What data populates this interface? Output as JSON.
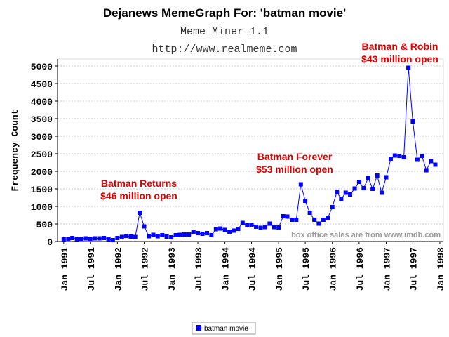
{
  "chart_data": {
    "type": "line",
    "title": "Dejanews MemeGraph For: 'batman movie'",
    "subtitle": "Meme Miner 1.1",
    "url": "http://www.realmeme.com",
    "y_label": "Frequency Count",
    "note": "box office sales are from www.imdb.com",
    "annotations": [
      {
        "lines": [
          "Batman Returns",
          "$46 million open"
        ]
      },
      {
        "lines": [
          "Batman Forever",
          "$53 million open"
        ]
      },
      {
        "lines": [
          "Batman & Robin",
          "$43 million open"
        ]
      }
    ],
    "x": [
      "1991-01",
      "1991-02",
      "1991-03",
      "1991-04",
      "1991-05",
      "1991-06",
      "1991-07",
      "1991-08",
      "1991-09",
      "1991-10",
      "1991-11",
      "1991-12",
      "1992-01",
      "1992-02",
      "1992-03",
      "1992-04",
      "1992-05",
      "1992-06",
      "1992-07",
      "1992-08",
      "1992-09",
      "1992-10",
      "1992-11",
      "1992-12",
      "1993-01",
      "1993-02",
      "1993-03",
      "1993-04",
      "1993-05",
      "1993-06",
      "1993-07",
      "1993-08",
      "1993-09",
      "1993-10",
      "1993-11",
      "1993-12",
      "1994-01",
      "1994-02",
      "1994-03",
      "1994-04",
      "1994-05",
      "1994-06",
      "1994-07",
      "1994-08",
      "1994-09",
      "1994-10",
      "1994-11",
      "1994-12",
      "1995-01",
      "1995-02",
      "1995-03",
      "1995-04",
      "1995-05",
      "1995-06",
      "1995-07",
      "1995-08",
      "1995-09",
      "1995-10",
      "1995-11",
      "1995-12",
      "1996-01",
      "1996-02",
      "1996-03",
      "1996-04",
      "1996-05",
      "1996-06",
      "1996-07",
      "1996-08",
      "1996-09",
      "1996-10",
      "1996-11",
      "1996-12",
      "1997-01",
      "1997-02",
      "1997-03",
      "1997-04",
      "1997-05",
      "1997-06",
      "1997-07",
      "1997-08",
      "1997-09",
      "1997-10",
      "1997-11",
      "1997-12"
    ],
    "series": [
      {
        "name": "batman movie",
        "color": "#0000ff",
        "values": [
          60,
          80,
          100,
          70,
          80,
          90,
          80,
          90,
          90,
          100,
          60,
          40,
          100,
          130,
          160,
          140,
          130,
          820,
          430,
          150,
          190,
          150,
          180,
          140,
          120,
          180,
          190,
          200,
          200,
          280,
          240,
          220,
          240,
          180,
          350,
          370,
          330,
          280,
          310,
          360,
          530,
          460,
          480,
          420,
          390,
          410,
          510,
          410,
          400,
          720,
          710,
          620,
          620,
          1630,
          1160,
          820,
          620,
          510,
          620,
          670,
          980,
          1410,
          1210,
          1390,
          1340,
          1510,
          1700,
          1520,
          1810,
          1500,
          1880,
          1390,
          1830,
          2350,
          2450,
          2440,
          2400,
          4950,
          3420,
          2330,
          2440,
          2030,
          2290,
          2190
        ]
      }
    ],
    "xlim": [
      "1990-11-20",
      "1998-01-25"
    ],
    "xticks": [
      {
        "value": "1991-01",
        "label": "Jan 1991"
      },
      {
        "value": "1991-07",
        "label": "Jul 1991"
      },
      {
        "value": "1992-01",
        "label": "Jan 1992"
      },
      {
        "value": "1992-07",
        "label": "Jul 1992"
      },
      {
        "value": "1993-01",
        "label": "Jan 1993"
      },
      {
        "value": "1993-07",
        "label": "Jul 1993"
      },
      {
        "value": "1994-01",
        "label": "Jan 1994"
      },
      {
        "value": "1994-07",
        "label": "Jul 1994"
      },
      {
        "value": "1995-01",
        "label": "Jan 1995"
      },
      {
        "value": "1995-07",
        "label": "Jul 1995"
      },
      {
        "value": "1996-01",
        "label": "Jan 1996"
      },
      {
        "value": "1996-07",
        "label": "Jul 1996"
      },
      {
        "value": "1997-01",
        "label": "Jan 1997"
      },
      {
        "value": "1997-07",
        "label": "Jul 1997"
      },
      {
        "value": "1998-01",
        "label": "Jan 1998"
      }
    ],
    "ylim": [
      0,
      5200
    ],
    "yticks": [
      0,
      500,
      1000,
      1500,
      2000,
      2500,
      3000,
      3500,
      4000,
      4500,
      5000
    ],
    "grid": true
  }
}
